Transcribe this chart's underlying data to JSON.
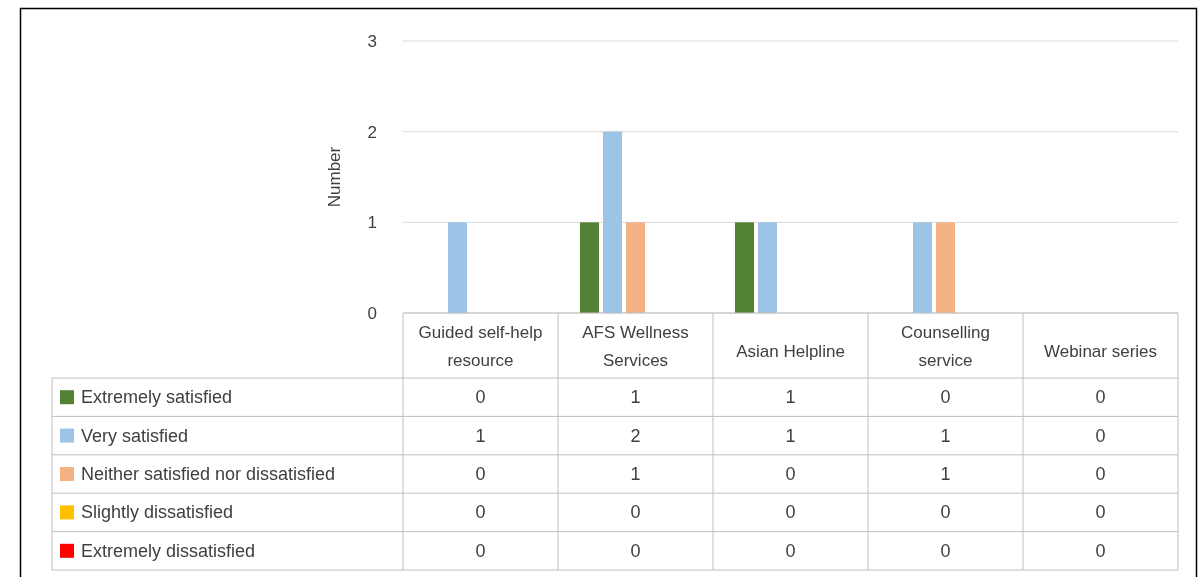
{
  "chart_data": {
    "type": "bar",
    "ylabel": "Number",
    "categories": [
      "Guided self-help resource",
      "AFS Wellness Services",
      "Asian Helpline",
      "Counselling service",
      "Webinar series"
    ],
    "series": [
      {
        "name": "Extremely satisfied",
        "color": "#548235",
        "values": [
          0,
          1,
          1,
          0,
          0
        ]
      },
      {
        "name": "Very satisfied",
        "color": "#9dc3e6",
        "values": [
          1,
          2,
          1,
          1,
          0
        ]
      },
      {
        "name": "Neither satisfied nor dissatisfied",
        "color": "#f4b183",
        "values": [
          0,
          1,
          0,
          1,
          0
        ]
      },
      {
        "name": "Slightly dissatisfied",
        "color": "#ffc000",
        "values": [
          0,
          0,
          0,
          0,
          0
        ]
      },
      {
        "name": "Extremely dissatisfied",
        "color": "#ff0000",
        "values": [
          0,
          0,
          0,
          0,
          0
        ]
      }
    ],
    "ylim": [
      0,
      3
    ],
    "yticks": [
      0,
      1,
      2,
      3
    ],
    "grid": "y",
    "legend": "bottom",
    "data_labels": true
  }
}
